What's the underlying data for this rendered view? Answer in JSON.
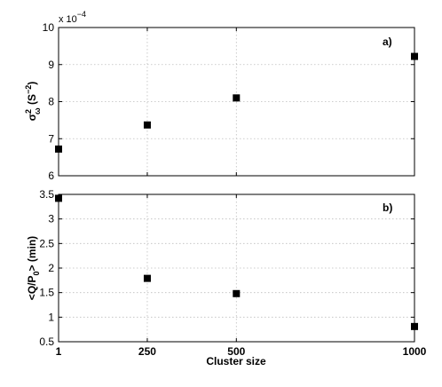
{
  "chart_data": [
    {
      "type": "scatter",
      "panel_label": "a)",
      "ylabel": "σ²_ω (S⁻²)",
      "ylabel_parts": {
        "sym": "σ",
        "sup": "2",
        "sub": "ω",
        "rest": " (S",
        "unit_sup": "−2",
        "close": ")"
      },
      "y_exponent_label": "x 10",
      "y_exponent_value": "−4",
      "x": [
        1,
        250,
        500,
        1000
      ],
      "y": [
        6.72,
        7.37,
        8.1,
        9.22
      ],
      "ylim": [
        6,
        10
      ],
      "yticks": [
        6,
        7,
        8,
        9,
        10
      ],
      "ytick_labels": [
        "6",
        "7",
        "8",
        "9",
        "10"
      ],
      "xlim": [
        1,
        1000
      ],
      "xticks": [
        1,
        250,
        500,
        1000
      ],
      "grid": true,
      "marker": "square",
      "color": "#000000"
    },
    {
      "type": "scatter",
      "panel_label": "b)",
      "ylabel": "<Q/P₀> (min)",
      "ylabel_parts": {
        "pre": "<Q/P",
        "sub": "0",
        "rest": "> (min)"
      },
      "x": [
        1,
        250,
        500,
        1000
      ],
      "y": [
        3.42,
        1.79,
        1.48,
        0.81
      ],
      "ylim": [
        0.5,
        3.5
      ],
      "yticks": [
        0.5,
        1,
        1.5,
        2,
        2.5,
        3,
        3.5
      ],
      "ytick_labels": [
        "0.5",
        "1",
        "1.5",
        "2",
        "2.5",
        "3",
        "3.5"
      ],
      "xlim": [
        1,
        1000
      ],
      "xticks": [
        1,
        250,
        500,
        1000
      ],
      "xtick_labels": [
        "1",
        "250",
        "500",
        "1000"
      ],
      "xlabel": "Cluster size",
      "grid": true,
      "marker": "square",
      "color": "#000000"
    }
  ]
}
